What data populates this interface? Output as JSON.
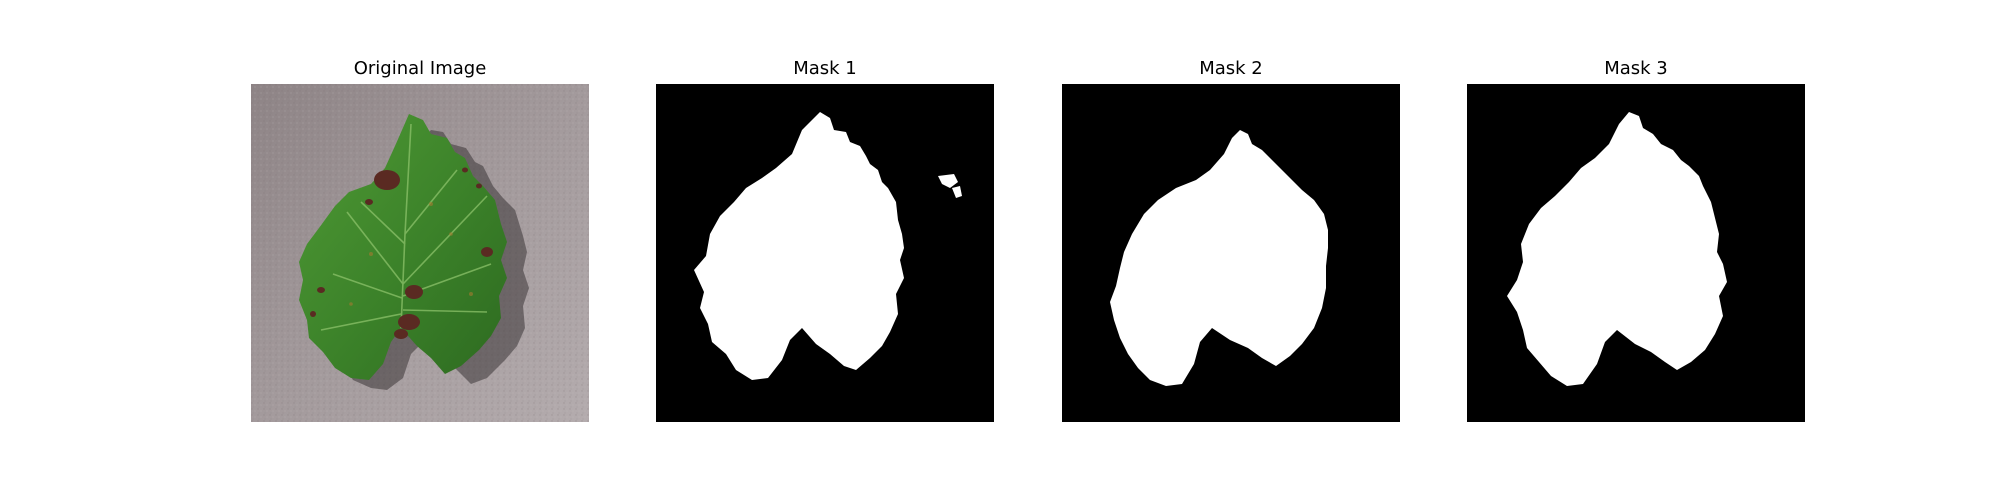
{
  "panels": [
    {
      "title": "Original Image"
    },
    {
      "title": "Mask 1"
    },
    {
      "title": "Mask 2"
    },
    {
      "title": "Mask 3"
    }
  ],
  "colors": {
    "background": "#ffffff",
    "mask_background": "#000000",
    "mask_foreground": "#ffffff",
    "photo_backdrop": "#9a9092",
    "leaf_green": "#3e8a2e",
    "leaf_dark_green": "#2a6a1e",
    "lesion_brown": "#5a2a22"
  },
  "icons": {
    "original": "leaf-photo",
    "mask1": "leaf-mask",
    "mask2": "leaf-mask",
    "mask3": "leaf-mask"
  }
}
